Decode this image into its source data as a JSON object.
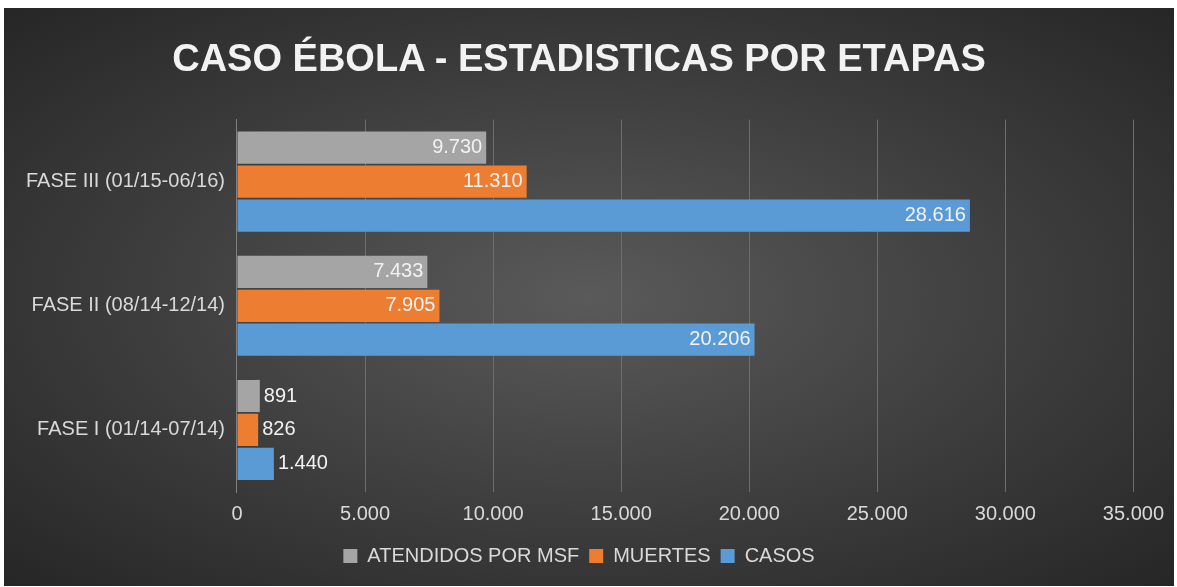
{
  "chart_data": {
    "type": "bar",
    "orientation": "horizontal",
    "title": "CASO ÉBOLA - ESTADISTICAS POR ETAPAS",
    "categories": [
      "FASE III (01/15-06/16)",
      "FASE II (08/14-12/14)",
      "FASE I (01/14-07/14)"
    ],
    "series": [
      {
        "name": "ATENDIDOS POR MSF",
        "color": "#a5a5a5",
        "values": [
          9730,
          7433,
          891
        ],
        "value_labels": [
          "9.730",
          "7.433",
          "891"
        ]
      },
      {
        "name": "MUERTES",
        "color": "#ed7d31",
        "values": [
          11310,
          7905,
          826
        ],
        "value_labels": [
          "11.310",
          "7.905",
          "826"
        ]
      },
      {
        "name": "CASOS",
        "color": "#5b9bd5",
        "values": [
          28616,
          20206,
          1440
        ],
        "value_labels": [
          "28.616",
          "20.206",
          "1.440"
        ]
      }
    ],
    "xlim": [
      0,
      35000
    ],
    "xticks": [
      0,
      {
        "value": 5000,
        "label": "5.000"
      },
      {
        "value": 10000,
        "label": "10.000"
      },
      {
        "value": 15000,
        "label": "15.000"
      },
      {
        "value": 20000,
        "label": "20.000"
      },
      {
        "value": 25000,
        "label": "25.000"
      },
      {
        "value": 30000,
        "label": "30.000"
      },
      {
        "value": 35000,
        "label": "35.000"
      }
    ],
    "grid": "x",
    "legend": "bottom"
  }
}
